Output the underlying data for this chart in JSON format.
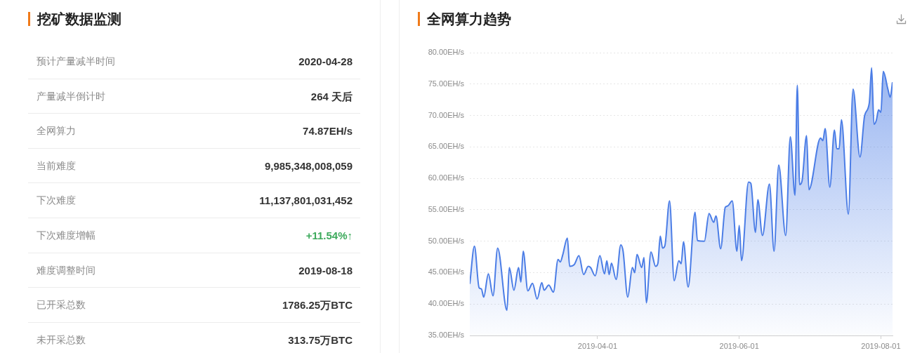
{
  "chart_data": [
    {
      "type": "other",
      "title": "挖矿数据监测",
      "categories": [
        "预计产量减半时间",
        "产量减半倒计时",
        "全网算力",
        "当前难度",
        "下次难度",
        "下次难度增幅",
        "难度调整时间",
        "已开采总数",
        "未开采总数"
      ],
      "value_labels": [
        "2020-04-28",
        "264 天后",
        "74.87EH/s",
        "9,985,348,008,059",
        "11,137,801,031,452",
        "+11.54%↑",
        "2019-08-18",
        "1786.25万BTC",
        "313.75万BTC"
      ],
      "colors": [
        "#333333",
        "#333333",
        "#333333",
        "#333333",
        "#333333",
        "#3daa5c",
        "#333333",
        "#333333",
        "#333333"
      ]
    },
    {
      "type": "area",
      "title": "全网算力趋势",
      "x": [
        "2019-02-05",
        "2019-02-07",
        "2019-02-09",
        "2019-02-10",
        "2019-02-11",
        "2019-02-13",
        "2019-02-15",
        "2019-02-17",
        "2019-02-21",
        "2019-02-22",
        "2019-02-24",
        "2019-02-26",
        "2019-02-27",
        "2019-02-28",
        "2019-03-02",
        "2019-03-04",
        "2019-03-06",
        "2019-03-08",
        "2019-03-09",
        "2019-03-11",
        "2019-03-13",
        "2019-03-15",
        "2019-03-16",
        "2019-03-17",
        "2019-03-19",
        "2019-03-20",
        "2019-03-22",
        "2019-03-24",
        "2019-03-26",
        "2019-03-28",
        "2019-03-29",
        "2019-03-31",
        "2019-04-02",
        "2019-04-04",
        "2019-04-05",
        "2019-04-06",
        "2019-04-07",
        "2019-04-09",
        "2019-04-11",
        "2019-04-12",
        "2019-04-14",
        "2019-04-16",
        "2019-04-17",
        "2019-04-18",
        "2019-04-20",
        "2019-04-21",
        "2019-04-22",
        "2019-04-24",
        "2019-04-26",
        "2019-04-27",
        "2019-04-28",
        "2019-04-29",
        "2019-04-30",
        "2019-05-02",
        "2019-05-04",
        "2019-05-06",
        "2019-05-07",
        "2019-05-08",
        "2019-05-10",
        "2019-05-13",
        "2019-05-14",
        "2019-05-17",
        "2019-05-19",
        "2019-05-21",
        "2019-05-22",
        "2019-05-24",
        "2019-05-26",
        "2019-05-27",
        "2019-05-29",
        "2019-05-31",
        "2019-06-01",
        "2019-06-02",
        "2019-06-05",
        "2019-06-06",
        "2019-06-08",
        "2019-06-09",
        "2019-06-11",
        "2019-06-14",
        "2019-06-16",
        "2019-06-18",
        "2019-06-21",
        "2019-06-23",
        "2019-06-25",
        "2019-06-26",
        "2019-06-27",
        "2019-06-28",
        "2019-06-30",
        "2019-07-01",
        "2019-07-06",
        "2019-07-07",
        "2019-07-08",
        "2019-07-10",
        "2019-07-12",
        "2019-07-13",
        "2019-07-14",
        "2019-07-15",
        "2019-07-18",
        "2019-07-20",
        "2019-07-23",
        "2019-07-25",
        "2019-07-27",
        "2019-07-28",
        "2019-07-29",
        "2019-07-30",
        "2019-07-31",
        "2019-08-01",
        "2019-08-02",
        "2019-08-04",
        "2019-08-05",
        "2019-08-06"
      ],
      "series": [
        {
          "color": "#4b7de6",
          "values": [
            43.2,
            49.2,
            42.6,
            42.4,
            41.1,
            44.8,
            41.3,
            48.9,
            39.0,
            45.8,
            42.2,
            45.8,
            43.5,
            48.4,
            42.1,
            43.3,
            40.8,
            43.4,
            42.2,
            43.0,
            41.9,
            47.1,
            46.7,
            47.8,
            50.5,
            46.0,
            46.3,
            47.7,
            44.7,
            46.0,
            45.8,
            44.5,
            47.7,
            44.8,
            46.9,
            44.7,
            46.5,
            43.9,
            49.4,
            48.4,
            41.1,
            45.8,
            45.0,
            47.9,
            45.8,
            47.4,
            40.2,
            48.3,
            46.0,
            46.5,
            50.8,
            48.9,
            49.3,
            56.4,
            43.7,
            46.9,
            46.4,
            49.9,
            42.7,
            54.6,
            50.1,
            50.0,
            54.4,
            53.0,
            54.0,
            48.8,
            55.4,
            55.6,
            56.4,
            48.4,
            52.5,
            46.9,
            59.4,
            59.2,
            51.4,
            56.6,
            50.9,
            59.1,
            48.4,
            62.1,
            50.9,
            66.6,
            57.3,
            74.8,
            59.0,
            59.5,
            66.8,
            58.2,
            66.4,
            66.0,
            67.9,
            58.6,
            67.7,
            64.7,
            64.7,
            69.3,
            54.3,
            74.2,
            63.4,
            70.0,
            72.0,
            77.6,
            68.6,
            69.2,
            70.9,
            70.5,
            77.0,
            74.2,
            72.9,
            75.3
          ]
        }
      ],
      "xlim": [
        "2019-02-05",
        "2019-08-06"
      ],
      "xticks": [
        "2019-04-01",
        "2019-06-01",
        "2019-08-01"
      ],
      "ylim": [
        35,
        80
      ],
      "yticks": [
        {
          "value": 35,
          "label": "35.00EH/s"
        },
        {
          "value": 40,
          "label": "40.00EH/s"
        },
        {
          "value": 45,
          "label": "45.00EH/s"
        },
        {
          "value": 50,
          "label": "50.00EH/s"
        },
        {
          "value": 55,
          "label": "55.00EH/s"
        },
        {
          "value": 60,
          "label": "60.00EH/s"
        },
        {
          "value": 65,
          "label": "65.00EH/s"
        },
        {
          "value": 70,
          "label": "70.00EH/s"
        },
        {
          "value": 75,
          "label": "75.00EH/s"
        },
        {
          "value": 80,
          "label": "80.00EH/s"
        }
      ],
      "grid": "y"
    }
  ]
}
